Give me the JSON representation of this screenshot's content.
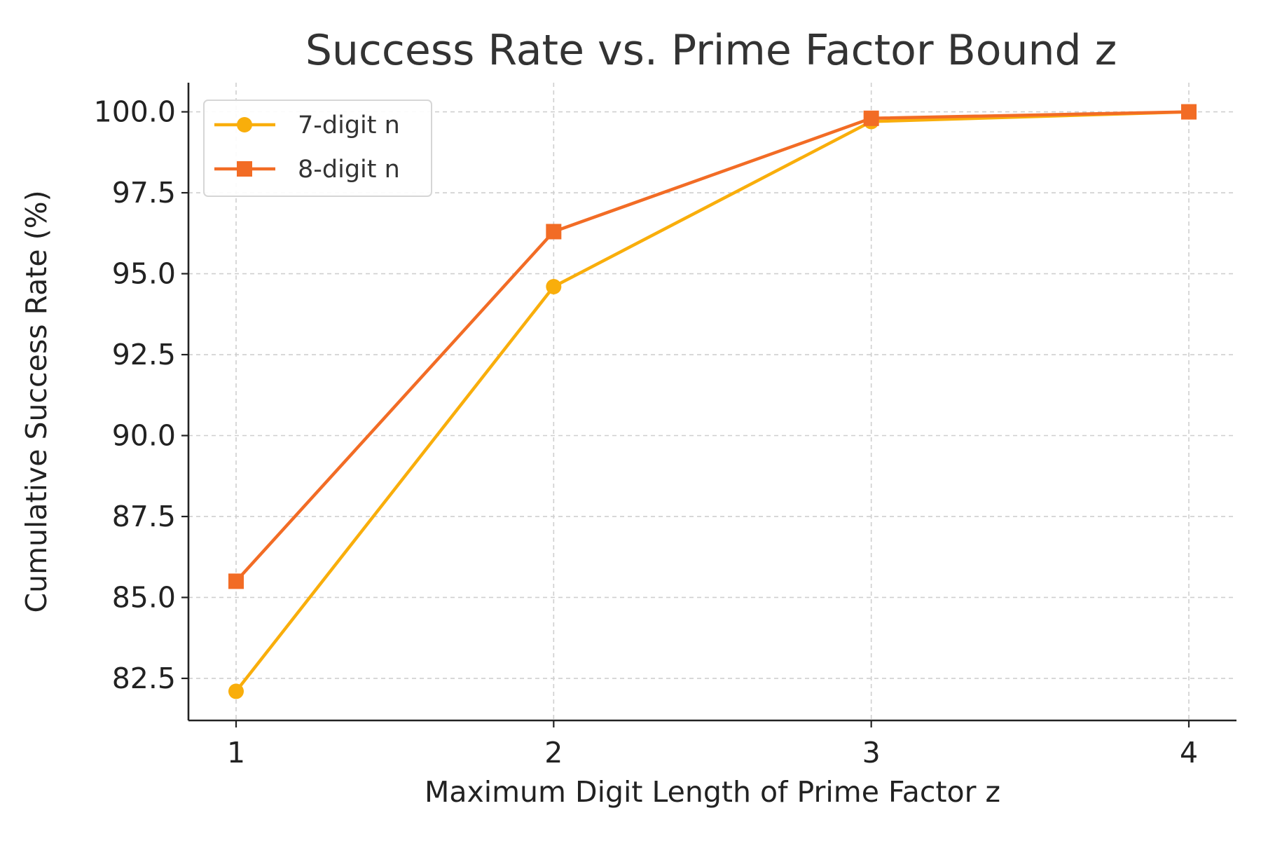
{
  "chart_data": {
    "type": "line",
    "title": "Success Rate vs. Prime Factor Bound z",
    "xlabel": "Maximum Digit Length of Prime Factor z",
    "ylabel": "Cumulative Success Rate (%)",
    "x": [
      1,
      2,
      3,
      4
    ],
    "x_tick_labels": [
      "1",
      "2",
      "3",
      "4"
    ],
    "y_ticks": [
      82.5,
      85.0,
      87.5,
      90.0,
      92.5,
      95.0,
      97.5,
      100.0
    ],
    "y_tick_labels": [
      "82.5",
      "85.0",
      "87.5",
      "90.0",
      "92.5",
      "95.0",
      "97.5",
      "100.0"
    ],
    "xlim": [
      0.85,
      4.15
    ],
    "ylim": [
      81.2,
      100.9
    ],
    "grid": true,
    "legend_position": "top-left",
    "series": [
      {
        "name": "7-digit n",
        "values": [
          82.1,
          94.6,
          99.7,
          100.0
        ],
        "color": "#F9AE0B",
        "marker": "circle"
      },
      {
        "name": "8-digit n",
        "values": [
          85.5,
          96.3,
          99.8,
          100.0
        ],
        "color": "#F26C25",
        "marker": "square"
      }
    ]
  }
}
